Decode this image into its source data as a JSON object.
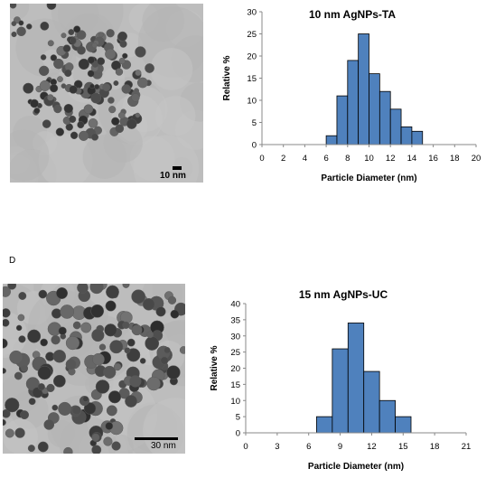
{
  "panels": [
    {
      "letter": "",
      "scale_label": "10 nm"
    },
    {
      "letter": "D",
      "scale_label": "30 nm"
    }
  ],
  "chart_data": [
    {
      "type": "bar",
      "title": "10 nm AgNPs-TA",
      "xlabel": "Particle Diameter (nm)",
      "ylabel": "Relative %",
      "xlim": [
        0,
        20
      ],
      "xticks": [
        0,
        2,
        4,
        6,
        8,
        10,
        12,
        14,
        16,
        18,
        20
      ],
      "ylim": [
        0,
        30
      ],
      "yticks": [
        0,
        5,
        10,
        15,
        20,
        25,
        30
      ],
      "bin_width": 1,
      "bins": [
        6.5,
        7.5,
        8.5,
        9.5,
        10.5,
        11.5,
        12.5,
        13.5,
        14.5
      ],
      "values": [
        2,
        11,
        19,
        25,
        16,
        12,
        8,
        4,
        3
      ],
      "bar_color": "#4f81bd",
      "grid": false,
      "legend": "none"
    },
    {
      "type": "bar",
      "title": "15 nm AgNPs-UC",
      "xlabel": "Particle Diameter (nm)",
      "ylabel": "Relative %",
      "xlim": [
        0,
        21
      ],
      "xticks": [
        0,
        3,
        6,
        9,
        12,
        15,
        18,
        21
      ],
      "ylim": [
        0,
        40
      ],
      "yticks": [
        0,
        5,
        10,
        15,
        20,
        25,
        30,
        35,
        40
      ],
      "bin_width": 1.5,
      "bins": [
        7.5,
        9,
        10.5,
        12,
        13.5,
        15
      ],
      "values": [
        5,
        26,
        34,
        19,
        10,
        5
      ],
      "bar_color": "#4f81bd",
      "grid": false,
      "legend": "none"
    }
  ]
}
